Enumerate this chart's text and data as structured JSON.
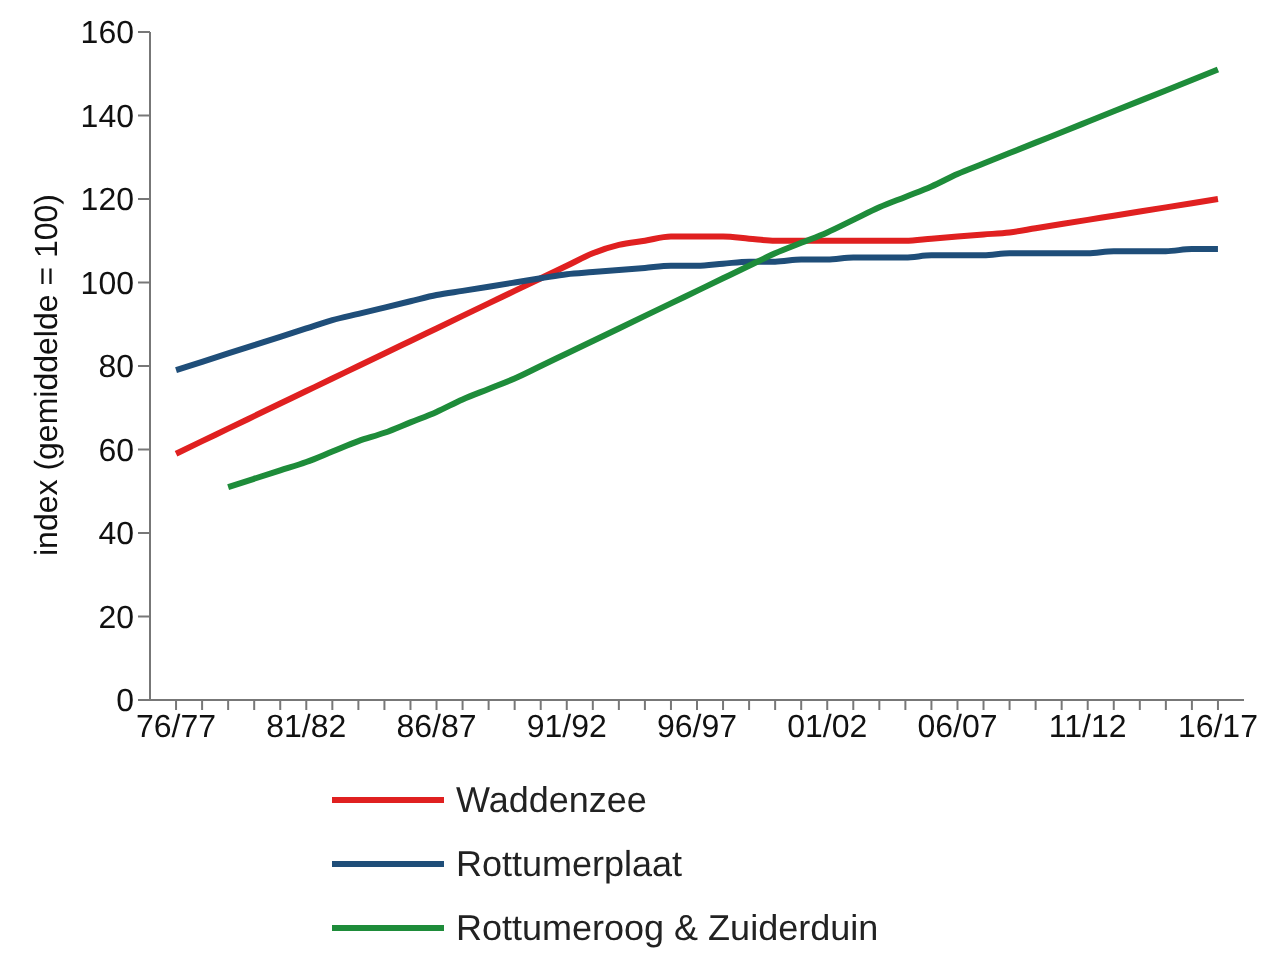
{
  "chart_data": {
    "type": "line",
    "ylabel": "index (gemiddelde = 100)",
    "categories": [
      "76/77",
      null,
      null,
      null,
      null,
      "81/82",
      null,
      null,
      null,
      null,
      "86/87",
      null,
      null,
      null,
      null,
      "91/92",
      null,
      null,
      null,
      null,
      "96/97",
      null,
      null,
      null,
      null,
      "01/02",
      null,
      null,
      null,
      null,
      "06/07",
      null,
      null,
      null,
      null,
      "11/12",
      null,
      null,
      null,
      null,
      "16/17"
    ],
    "series": [
      {
        "name": "Waddenzee",
        "color": "#e02020",
        "values": [
          59,
          62,
          65,
          68,
          71,
          74,
          77,
          80,
          83,
          86,
          89,
          92,
          95,
          98,
          101,
          104,
          107,
          109,
          110,
          111,
          111,
          111,
          110.5,
          110,
          110,
          110,
          110,
          110,
          110,
          110.5,
          111,
          111.5,
          112,
          113,
          114,
          115,
          116,
          117,
          118,
          119,
          120
        ]
      },
      {
        "name": "Rottumerplaat",
        "color": "#1f4e79",
        "values": [
          79,
          81,
          83,
          85,
          87,
          89,
          91,
          92.5,
          94,
          95.5,
          97,
          98,
          99,
          100,
          101,
          102,
          102.5,
          103,
          103.5,
          104,
          104,
          104.5,
          105,
          105,
          105.5,
          105.5,
          106,
          106,
          106,
          106.5,
          106.5,
          106.5,
          107,
          107,
          107,
          107,
          107.5,
          107.5,
          107.5,
          108,
          108
        ]
      },
      {
        "name": "Rottumeroog & Zuiderduin",
        "color": "#1e8c3a",
        "values": [
          null,
          null,
          51,
          53,
          55,
          57,
          59.5,
          62,
          64,
          66.5,
          69,
          72,
          74.5,
          77,
          80,
          83,
          86,
          89,
          92,
          95,
          98,
          101,
          104,
          107,
          109.5,
          112,
          115,
          118,
          120.5,
          123,
          126,
          128.5,
          131,
          133.5,
          136,
          138.5,
          141,
          143.5,
          146,
          148.5,
          151
        ]
      }
    ],
    "ylim": [
      0,
      160
    ],
    "yticks": [
      0,
      20,
      40,
      60,
      80,
      100,
      120,
      140,
      160
    ],
    "grid": false,
    "legend": "bottom",
    "marker": "none",
    "line_style": "solid"
  }
}
